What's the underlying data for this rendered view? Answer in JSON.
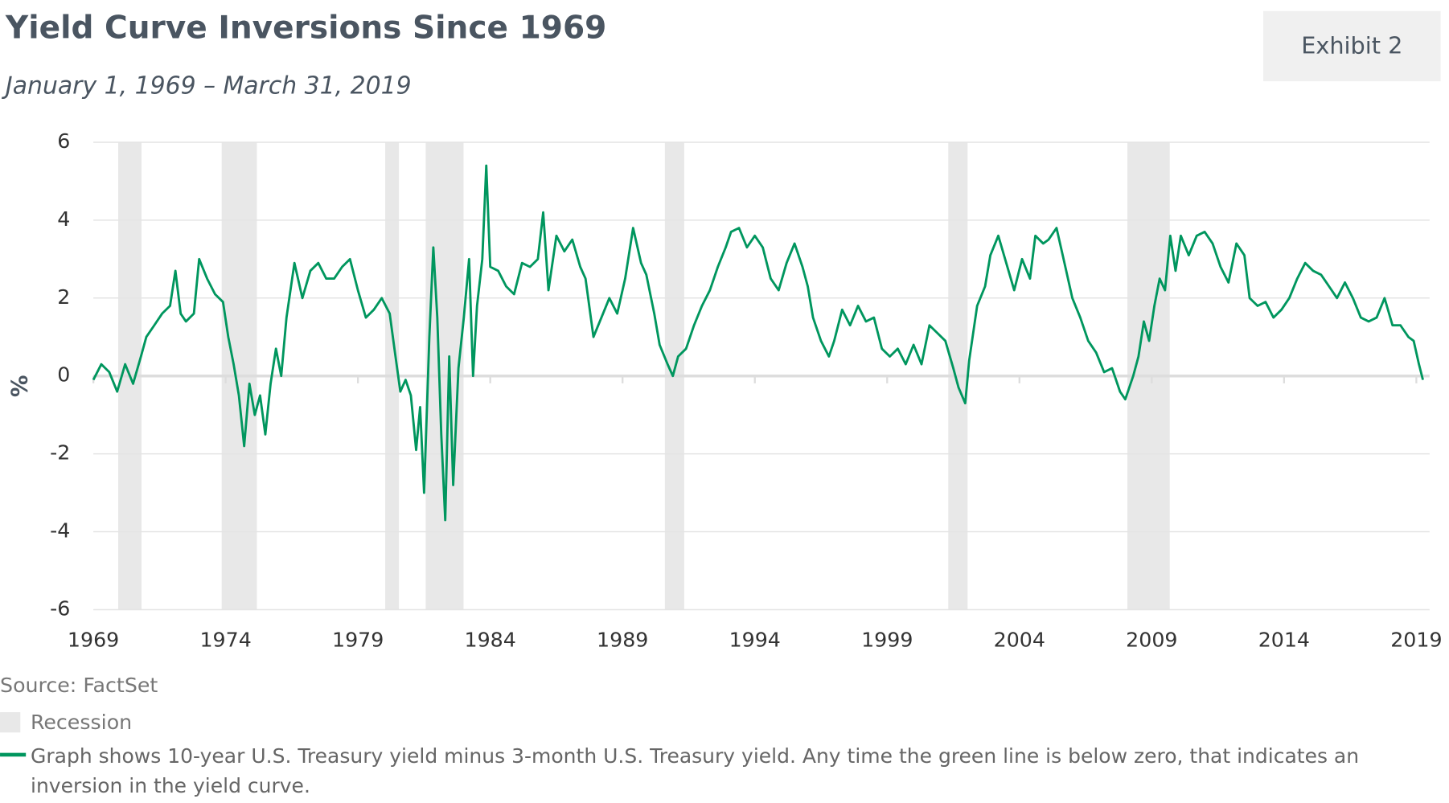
{
  "chart_data": {
    "type": "line",
    "title": "Yield Curve Inversions Since 1969",
    "subtitle": "January 1, 1969 – March 31, 2019",
    "exhibit": "Exhibit 2",
    "ylabel": "%",
    "source": "Source: FactSet",
    "recession_label": "Recession",
    "recession_color": "#e8e8e8",
    "recessions": [
      [
        1969.94,
        1970.82
      ],
      [
        1973.85,
        1975.18
      ],
      [
        1980.03,
        1980.55
      ],
      [
        1981.56,
        1982.99
      ],
      [
        1990.6,
        1991.33
      ],
      [
        2001.31,
        2002.04
      ],
      [
        2008.08,
        2009.68
      ]
    ],
    "xlim": [
      1969,
      2019.5
    ],
    "xticks": [
      1969,
      1974,
      1979,
      1984,
      1989,
      1994,
      1999,
      2004,
      2009,
      2014,
      2019
    ],
    "ylim": [
      -6,
      6
    ],
    "yticks": [
      -6,
      -4,
      -2,
      0,
      2,
      4,
      6
    ],
    "grid": true,
    "x": [
      1969.0,
      1969.3,
      1969.6,
      1969.9,
      1970.2,
      1970.5,
      1970.8,
      1971.0,
      1971.3,
      1971.6,
      1971.9,
      1972.1,
      1972.3,
      1972.5,
      1972.8,
      1973.0,
      1973.3,
      1973.6,
      1973.9,
      1974.1,
      1974.3,
      1974.5,
      1974.7,
      1974.9,
      1975.1,
      1975.3,
      1975.5,
      1975.7,
      1975.9,
      1976.1,
      1976.3,
      1976.6,
      1976.9,
      1977.2,
      1977.5,
      1977.8,
      1978.1,
      1978.4,
      1978.7,
      1979.0,
      1979.3,
      1979.6,
      1979.9,
      1980.2,
      1980.4,
      1980.6,
      1980.8,
      1981.0,
      1981.2,
      1981.35,
      1981.5,
      1981.7,
      1981.85,
      1982.0,
      1982.15,
      1982.3,
      1982.45,
      1982.6,
      1982.8,
      1983.0,
      1983.2,
      1983.35,
      1983.5,
      1983.7,
      1983.85,
      1984.0,
      1984.3,
      1984.6,
      1984.9,
      1985.2,
      1985.5,
      1985.8,
      1986.0,
      1986.2,
      1986.5,
      1986.8,
      1987.1,
      1987.4,
      1987.6,
      1987.9,
      1988.2,
      1988.5,
      1988.8,
      1989.1,
      1989.4,
      1989.7,
      1989.9,
      1990.2,
      1990.4,
      1990.7,
      1990.9,
      1991.1,
      1991.4,
      1991.7,
      1992.0,
      1992.3,
      1992.6,
      1992.9,
      1993.1,
      1993.4,
      1993.7,
      1994.0,
      1994.3,
      1994.6,
      1994.9,
      1995.2,
      1995.5,
      1995.8,
      1996.0,
      1996.2,
      1996.5,
      1996.8,
      1997.0,
      1997.3,
      1997.6,
      1997.9,
      1998.2,
      1998.5,
      1998.8,
      1999.1,
      1999.4,
      1999.7,
      2000.0,
      2000.3,
      2000.6,
      2000.9,
      2001.2,
      2001.5,
      2001.7,
      2001.95,
      2002.1,
      2002.4,
      2002.7,
      2002.9,
      2003.2,
      2003.5,
      2003.8,
      2004.1,
      2004.4,
      2004.6,
      2004.9,
      2005.1,
      2005.4,
      2005.7,
      2006.0,
      2006.3,
      2006.6,
      2006.9,
      2007.2,
      2007.5,
      2007.8,
      2008.0,
      2008.3,
      2008.5,
      2008.7,
      2008.9,
      2009.1,
      2009.3,
      2009.5,
      2009.7,
      2009.9,
      2010.1,
      2010.4,
      2010.7,
      2011.0,
      2011.3,
      2011.6,
      2011.9,
      2012.2,
      2012.5,
      2012.7,
      2013.0,
      2013.3,
      2013.6,
      2013.9,
      2014.2,
      2014.5,
      2014.8,
      2015.1,
      2015.4,
      2015.7,
      2016.0,
      2016.3,
      2016.6,
      2016.9,
      2017.2,
      2017.5,
      2017.8,
      2018.1,
      2018.4,
      2018.7,
      2018.9,
      2019.1,
      2019.25
    ],
    "series": [
      {
        "name": "Graph shows 10-year U.S. Treasury yield minus 3-month U.S. Treasury yield. Any time the green line is below zero, that indicates an inversion in the yield curve.",
        "color": "#00965e",
        "values": [
          -0.1,
          0.3,
          0.1,
          -0.4,
          0.3,
          -0.2,
          0.5,
          1.0,
          1.3,
          1.6,
          1.8,
          2.7,
          1.6,
          1.4,
          1.6,
          3.0,
          2.5,
          2.1,
          1.9,
          1.0,
          0.3,
          -0.5,
          -1.8,
          -0.2,
          -1.0,
          -0.5,
          -1.5,
          -0.2,
          0.7,
          0.0,
          1.5,
          2.9,
          2.0,
          2.7,
          2.9,
          2.5,
          2.5,
          2.8,
          3.0,
          2.2,
          1.5,
          1.7,
          2.0,
          1.6,
          0.6,
          -0.4,
          -0.1,
          -0.5,
          -1.9,
          -0.8,
          -3.0,
          1.0,
          3.3,
          1.5,
          -1.5,
          -3.7,
          0.5,
          -2.8,
          0.2,
          1.5,
          3.0,
          0.0,
          1.8,
          3.0,
          5.4,
          2.8,
          2.7,
          2.3,
          2.1,
          2.9,
          2.8,
          3.0,
          4.2,
          2.2,
          3.6,
          3.2,
          3.5,
          2.8,
          2.5,
          1.0,
          1.5,
          2.0,
          1.6,
          2.5,
          3.8,
          2.9,
          2.6,
          1.6,
          0.8,
          0.3,
          0.0,
          0.5,
          0.7,
          1.3,
          1.8,
          2.2,
          2.8,
          3.3,
          3.7,
          3.8,
          3.3,
          3.6,
          3.3,
          2.5,
          2.2,
          2.9,
          3.4,
          2.8,
          2.3,
          1.5,
          0.9,
          0.5,
          0.9,
          1.7,
          1.3,
          1.8,
          1.4,
          1.5,
          0.7,
          0.5,
          0.7,
          0.3,
          0.8,
          0.3,
          1.3,
          1.1,
          0.9,
          0.2,
          -0.3,
          -0.7,
          0.4,
          1.8,
          2.3,
          3.1,
          3.6,
          2.9,
          2.2,
          3.0,
          2.5,
          3.6,
          3.4,
          3.5,
          3.8,
          2.9,
          2.0,
          1.5,
          0.9,
          0.6,
          0.1,
          0.2,
          -0.4,
          -0.6,
          0.0,
          0.5,
          1.4,
          0.9,
          1.8,
          2.5,
          2.2,
          3.6,
          2.7,
          3.6,
          3.1,
          3.6,
          3.7,
          3.4,
          2.8,
          2.4,
          3.4,
          3.1,
          2.0,
          1.8,
          1.9,
          1.5,
          1.7,
          2.0,
          2.5,
          2.9,
          2.7,
          2.6,
          2.3,
          2.0,
          2.4,
          2.0,
          1.5,
          1.4,
          1.5,
          2.0,
          1.3,
          1.3,
          1.0,
          0.9,
          0.3,
          -0.1
        ]
      }
    ]
  }
}
